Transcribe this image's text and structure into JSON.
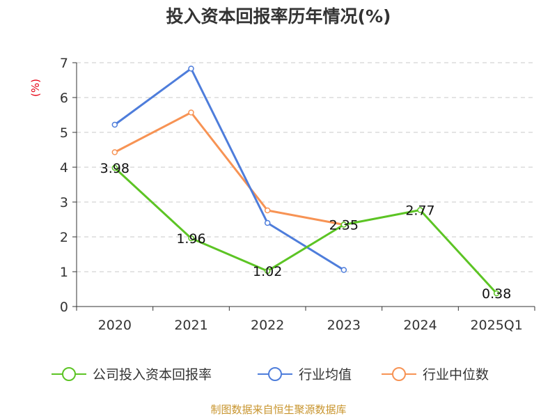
{
  "chart_data": {
    "type": "line",
    "title": "投入资本回报率历年情况(%)",
    "unit_label": "(%)",
    "categories": [
      "2020",
      "2021",
      "2022",
      "2023",
      "2024",
      "2025Q1"
    ],
    "ylim": [
      0,
      7
    ],
    "yticks": [
      "0",
      "1",
      "2",
      "3",
      "4",
      "5",
      "6",
      "7"
    ],
    "grid": true,
    "legend_position": "bottom",
    "series": [
      {
        "name": "公司投入资本回报率",
        "color": "#5cc424",
        "values": [
          3.98,
          1.96,
          1.02,
          2.35,
          2.77,
          0.38
        ],
        "labels": [
          "3.98",
          "1.96",
          "1.02",
          "2.35",
          "2.77",
          "0.38"
        ]
      },
      {
        "name": "行业均值",
        "color": "#4e7ddb",
        "values": [
          5.22,
          6.83,
          2.4,
          1.05,
          null,
          null
        ]
      },
      {
        "name": "行业中位数",
        "color": "#f79354",
        "values": [
          4.43,
          5.57,
          2.76,
          2.35,
          null,
          null
        ]
      }
    ],
    "source": "制图数据来自恒生聚源数据库"
  }
}
